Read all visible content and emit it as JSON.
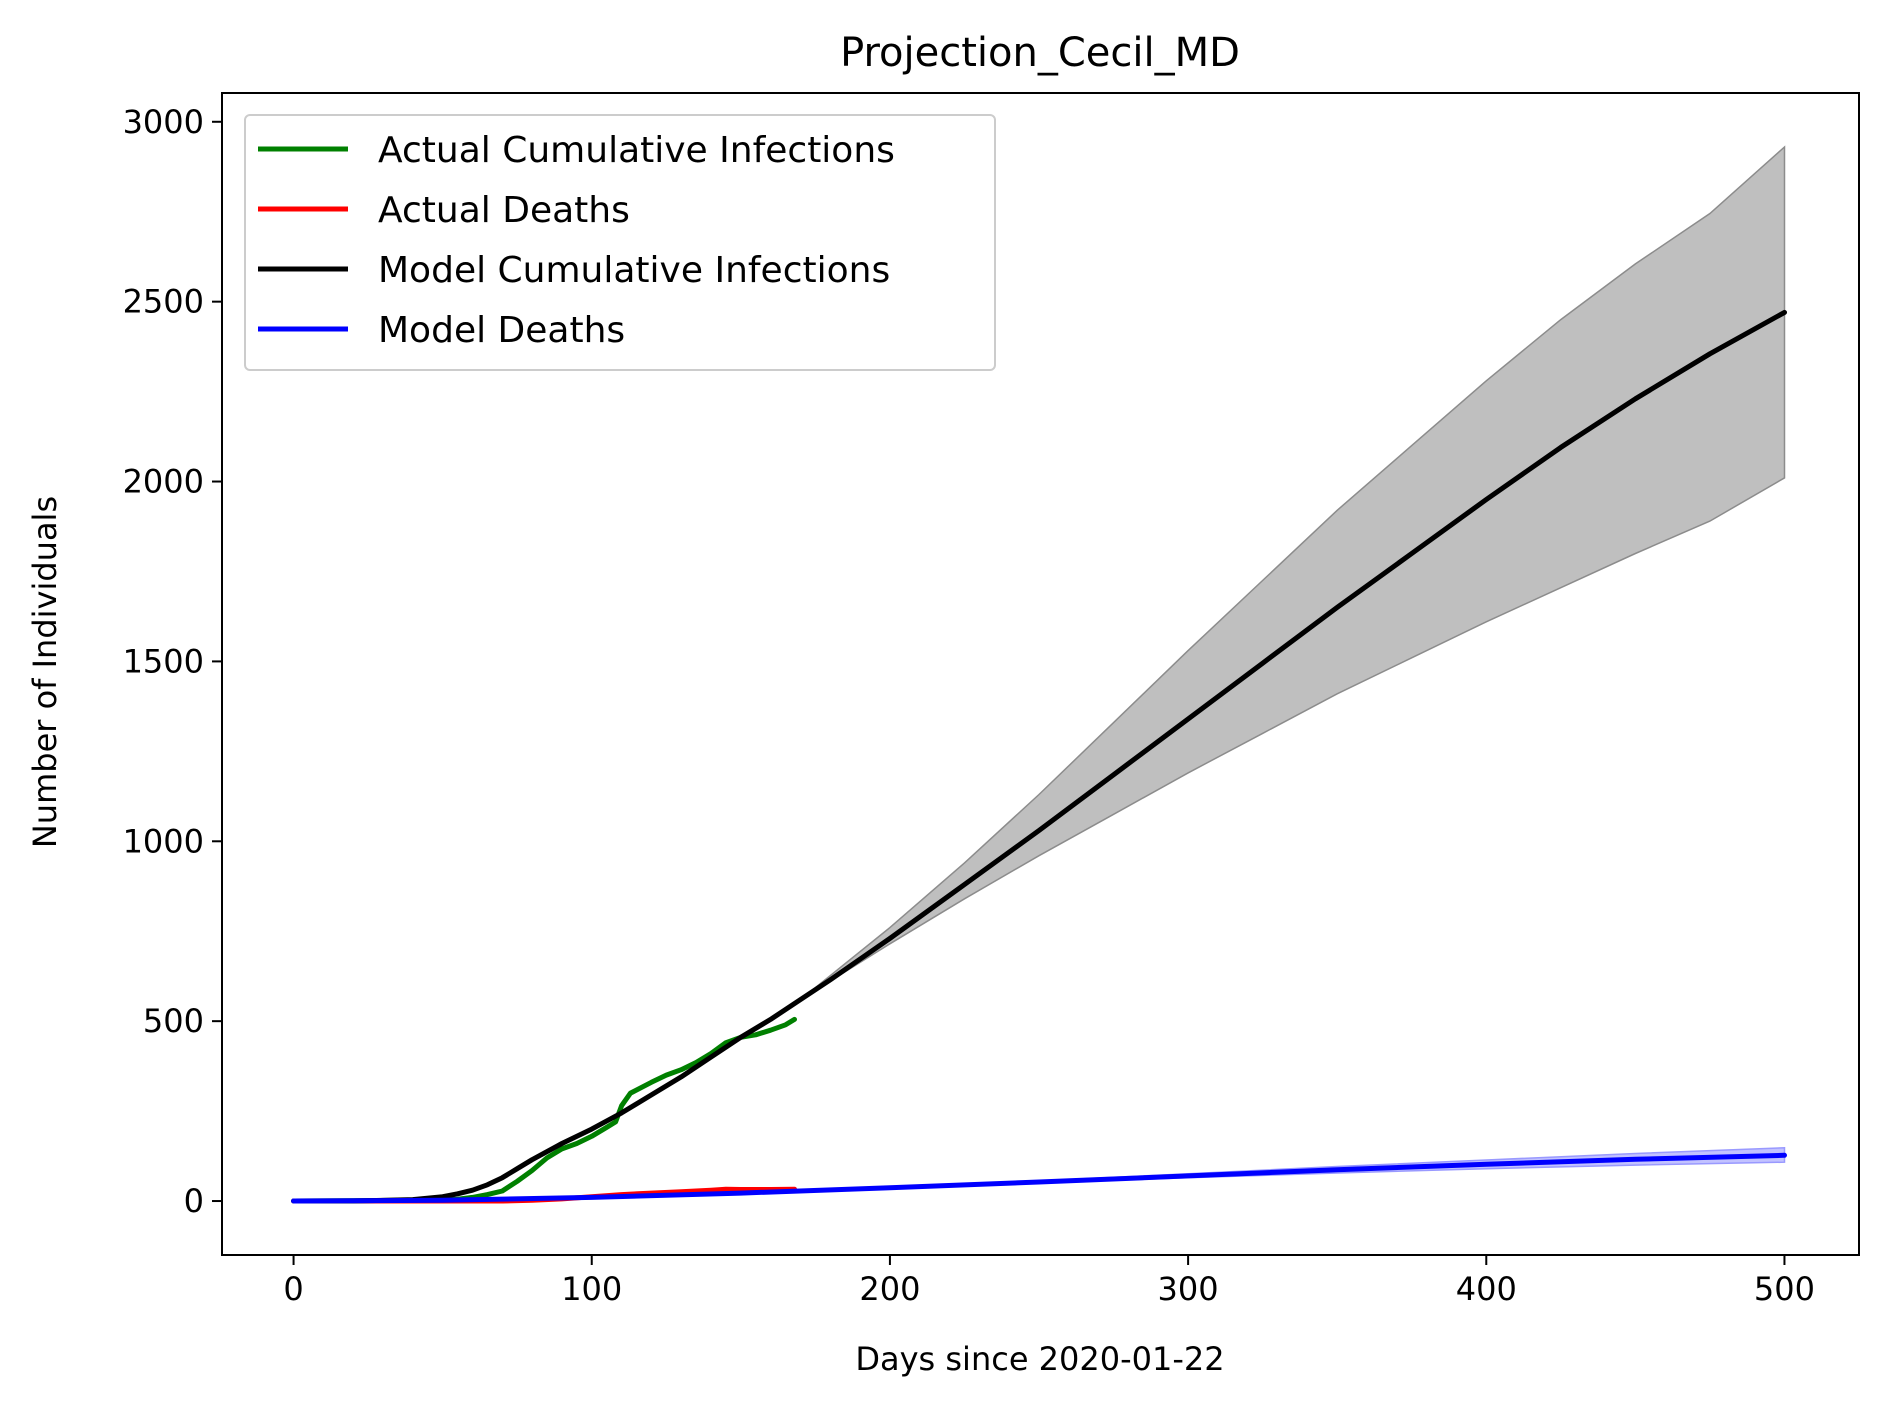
{
  "chart_data": {
    "type": "line",
    "title": "Projection_Cecil_MD",
    "xlabel": "Days since 2020-01-22",
    "ylabel": "Number of Individuals",
    "xlim": [
      -24,
      525
    ],
    "ylim": [
      -150,
      3080
    ],
    "x_ticks": [
      0,
      100,
      200,
      300,
      400,
      500
    ],
    "y_ticks": [
      0,
      500,
      1000,
      1500,
      2000,
      2500,
      3000
    ],
    "grid": false,
    "legend_position": "top-left",
    "colors": {
      "actual_infections": "#008000",
      "actual_deaths": "#ff0000",
      "model_infections": "#000000",
      "model_deaths": "#0000ff",
      "infections_band": "#bfbfbf",
      "deaths_band": "#b3b3ff"
    },
    "series": [
      {
        "name": "Actual Cumulative Infections",
        "x": [
          0,
          40,
          55,
          60,
          65,
          70,
          75,
          80,
          85,
          90,
          95,
          100,
          105,
          108,
          110,
          113,
          120,
          125,
          130,
          135,
          140,
          145,
          150,
          155,
          160,
          165,
          168
        ],
        "y": [
          0,
          2,
          5,
          10,
          18,
          28,
          55,
          85,
          120,
          145,
          160,
          180,
          205,
          220,
          265,
          300,
          330,
          350,
          365,
          385,
          410,
          440,
          455,
          462,
          475,
          490,
          505
        ]
      },
      {
        "name": "Actual Deaths",
        "x": [
          0,
          60,
          70,
          80,
          90,
          100,
          110,
          120,
          130,
          140,
          145,
          150,
          160,
          168
        ],
        "y": [
          0,
          0,
          0,
          2,
          6,
          12,
          18,
          22,
          26,
          30,
          33,
          32,
          32,
          33
        ]
      },
      {
        "name": "Model Cumulative Infections",
        "x": [
          0,
          20,
          40,
          50,
          55,
          60,
          65,
          70,
          75,
          80,
          90,
          100,
          110,
          120,
          130,
          140,
          150,
          160,
          170,
          180,
          200,
          225,
          250,
          275,
          300,
          325,
          350,
          375,
          400,
          425,
          450,
          475,
          500
        ],
        "y": [
          0,
          0,
          4,
          12,
          20,
          30,
          45,
          65,
          90,
          115,
          160,
          200,
          245,
          295,
          345,
          400,
          455,
          505,
          560,
          615,
          730,
          880,
          1030,
          1185,
          1340,
          1495,
          1650,
          1800,
          1950,
          2095,
          2230,
          2355,
          2470
        ]
      },
      {
        "name": "Model Deaths",
        "x": [
          0,
          50,
          100,
          150,
          200,
          250,
          300,
          350,
          400,
          450,
          500
        ],
        "y": [
          0,
          2,
          10,
          22,
          37,
          53,
          70,
          87,
          102,
          116,
          127
        ]
      }
    ],
    "bands": [
      {
        "of": "Model Cumulative Infections",
        "x": [
          170,
          200,
          225,
          250,
          275,
          300,
          325,
          350,
          375,
          400,
          425,
          450,
          475,
          500
        ],
        "lower": [
          560,
          715,
          840,
          960,
          1075,
          1190,
          1300,
          1410,
          1510,
          1610,
          1705,
          1800,
          1890,
          2010
        ],
        "upper": [
          560,
          760,
          940,
          1130,
          1330,
          1530,
          1725,
          1920,
          2100,
          2280,
          2450,
          2605,
          2745,
          2930
        ]
      },
      {
        "of": "Model Deaths",
        "x": [
          200,
          250,
          300,
          350,
          400,
          450,
          500
        ],
        "lower": [
          36,
          50,
          65,
          78,
          90,
          100,
          108
        ],
        "upper": [
          38,
          56,
          76,
          96,
          114,
          132,
          148
        ]
      }
    ]
  }
}
